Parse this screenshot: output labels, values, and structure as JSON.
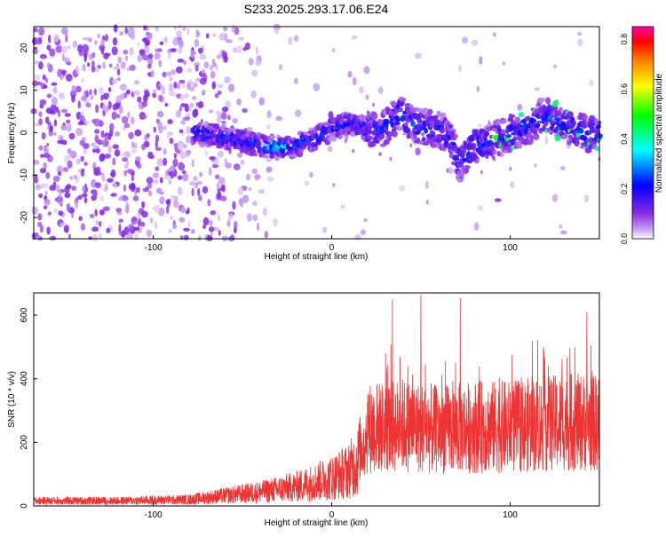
{
  "title": "S233.2025.293.17.06.E24",
  "chart_data": [
    {
      "type": "heatmap",
      "name": "spectrogram",
      "xlabel": "Height of straight line (km)",
      "ylabel": "Frequency (Hz)",
      "xlim": [
        -167,
        150
      ],
      "ylim": [
        -25,
        25
      ],
      "xticks": [
        -100,
        0,
        100
      ],
      "xtick_labels": [
        "-100",
        "0",
        "100"
      ],
      "yticks": [
        -20,
        -10,
        0,
        10,
        20
      ],
      "ytick_labels": [
        "-20",
        "-10",
        "0",
        "10",
        "20"
      ],
      "colorbar": {
        "label": "Normalized spectral amplitude",
        "range": [
          0.0,
          0.85
        ],
        "ticks": [
          0.0,
          0.2,
          0.4,
          0.6,
          0.8
        ],
        "tick_labels": [
          "0.0",
          "0.2",
          "0.4",
          "0.6",
          "0.8"
        ],
        "colors": [
          "#ffffff",
          "#8a2be2",
          "#0000ff",
          "#00ffff",
          "#00ff00",
          "#ffff00",
          "#ff8000",
          "#ff0000",
          "#ff00aa"
        ]
      },
      "ridge": {
        "x": [
          -78,
          -70,
          -60,
          -50,
          -40,
          -30,
          -20,
          -10,
          0,
          10,
          20,
          30,
          38,
          42,
          46,
          55,
          65,
          72,
          80,
          90,
          100,
          110,
          118,
          125,
          135,
          145,
          150
        ],
        "y": [
          0,
          -0.5,
          -1,
          -2,
          -3,
          -3.5,
          -3,
          -1.5,
          1,
          2,
          1,
          1,
          5,
          3,
          2,
          1,
          0,
          -7,
          -3,
          -2,
          0,
          1,
          4,
          3,
          1,
          -0.5,
          0
        ]
      }
    },
    {
      "type": "line",
      "name": "snr",
      "xlabel": "Height of straight line (km)",
      "ylabel": "SNR (10 * v/v)",
      "xlim": [
        -167,
        150
      ],
      "ylim": [
        0,
        670
      ],
      "xticks": [
        -100,
        0,
        100
      ],
      "xtick_labels": [
        "-100",
        "0",
        "100"
      ],
      "yticks": [
        0,
        200,
        400,
        600
      ],
      "ytick_labels": [
        "0",
        "200",
        "400",
        "600"
      ],
      "color": "#ee3333",
      "envelope": {
        "x": [
          -167,
          -120,
          -80,
          -60,
          -40,
          -20,
          0,
          10,
          18,
          20,
          40,
          60,
          80,
          100,
          120,
          140,
          150
        ],
        "y": [
          20,
          20,
          25,
          40,
          55,
          75,
          110,
          140,
          200,
          250,
          260,
          245,
          255,
          255,
          265,
          270,
          265
        ]
      },
      "peaks": [
        {
          "x": 34,
          "y": 650
        },
        {
          "x": 50,
          "y": 665
        },
        {
          "x": 72,
          "y": 655
        },
        {
          "x": 143,
          "y": 610
        }
      ]
    }
  ]
}
